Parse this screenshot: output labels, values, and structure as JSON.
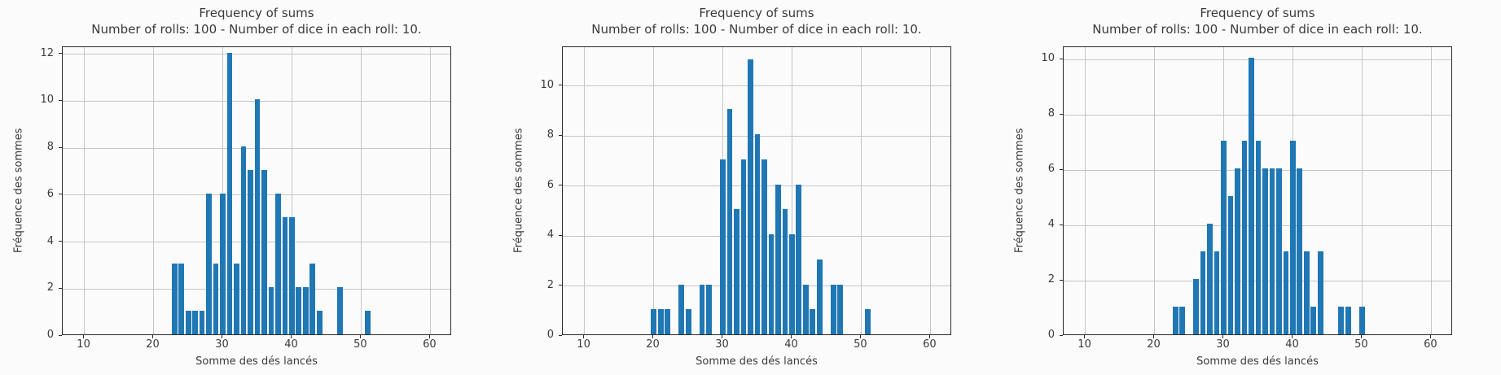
{
  "figure": {
    "background": "#fbfbfb",
    "bar_color": "#1f77b4",
    "grid_color": "#c6c6c6",
    "spine_color": "#2a2a2a",
    "text_color": "#3a3a3a",
    "bar_rwidth": 0.82
  },
  "chart_data": [
    {
      "type": "bar",
      "title": "Frequency of sums",
      "subtitle": "Number of rolls: 100 - Number of dice in each roll: 10.",
      "xlabel": "Somme des dés lancés",
      "ylabel": "Fréquence des sommes",
      "xlim": [
        6.87,
        63.13
      ],
      "ylim": [
        0,
        12.3
      ],
      "xticks": [
        10,
        20,
        30,
        40,
        50,
        60
      ],
      "yticks": [
        0,
        2,
        4,
        6,
        8,
        10,
        12
      ],
      "grid": true,
      "legend": "none",
      "x": [
        23,
        24,
        25,
        26,
        27,
        28,
        29,
        30,
        31,
        32,
        33,
        34,
        35,
        36,
        37,
        38,
        39,
        40,
        41,
        42,
        43,
        44,
        47,
        51
      ],
      "counts": [
        3,
        3,
        1,
        1,
        1,
        6,
        3,
        6,
        12,
        3,
        8,
        7,
        10,
        7,
        2,
        6,
        5,
        5,
        2,
        2,
        3,
        1,
        2,
        1
      ]
    },
    {
      "type": "bar",
      "title": "Frequency of sums",
      "subtitle": "Number of rolls: 100 - Number of dice in each roll: 10.",
      "xlabel": "Somme des dés lancés",
      "ylabel": "Fréquence des sommes",
      "xlim": [
        6.87,
        63.13
      ],
      "ylim": [
        0,
        11.55
      ],
      "xticks": [
        10,
        20,
        30,
        40,
        50,
        60
      ],
      "yticks": [
        0,
        2,
        4,
        6,
        8,
        10
      ],
      "grid": true,
      "legend": "none",
      "x": [
        20,
        21,
        22,
        24,
        25,
        27,
        28,
        30,
        31,
        32,
        33,
        34,
        35,
        36,
        37,
        38,
        39,
        40,
        41,
        42,
        43,
        44,
        46,
        47,
        51
      ],
      "counts": [
        1,
        1,
        1,
        2,
        1,
        2,
        2,
        7,
        9,
        5,
        7,
        11,
        8,
        7,
        4,
        6,
        5,
        4,
        6,
        2,
        1,
        3,
        2,
        2,
        1
      ]
    },
    {
      "type": "bar",
      "title": "Frequency of sums",
      "subtitle": "Number of rolls: 100 - Number of dice in each roll: 10.",
      "xlabel": "Somme des dés lancés",
      "ylabel": "Fréquence des sommes",
      "xlim": [
        6.87,
        63.13
      ],
      "ylim": [
        0,
        10.45
      ],
      "xticks": [
        10,
        20,
        30,
        40,
        50,
        60
      ],
      "yticks": [
        0,
        2,
        4,
        6,
        8,
        10
      ],
      "grid": true,
      "legend": "none",
      "x": [
        23,
        24,
        26,
        27,
        28,
        29,
        30,
        31,
        32,
        33,
        34,
        35,
        36,
        37,
        38,
        39,
        40,
        41,
        42,
        43,
        44,
        47,
        48,
        50
      ],
      "counts": [
        1,
        1,
        2,
        3,
        4,
        3,
        7,
        5,
        6,
        7,
        10,
        7,
        6,
        6,
        6,
        3,
        7,
        6,
        3,
        1,
        3,
        1,
        1,
        1
      ]
    }
  ]
}
